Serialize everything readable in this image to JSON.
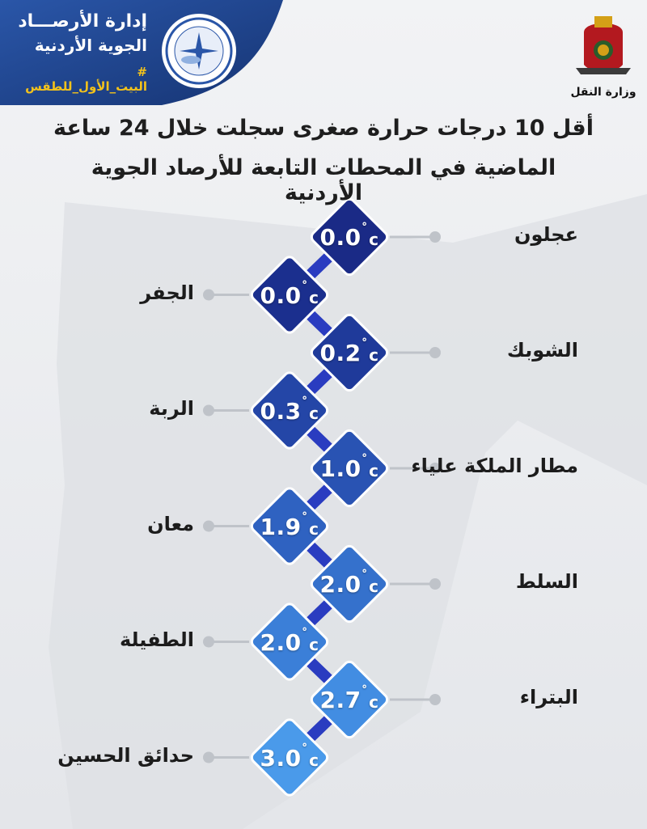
{
  "header": {
    "org_line1": "إدارة الأرصـــاد",
    "org_line2": "الجوية الأردنية",
    "hashtag": "# البيت_الأول_للطقس",
    "logo_icon": "meteorological-department-seal",
    "ministry_emblem": "jordan-coat-of-arms",
    "ministry_name": "وزارة النقل"
  },
  "title": {
    "line1": "أقل 10 درجات حرارة صغرى سجلت خلال 24 ساعة",
    "line2": "الماضية في المحطات التابعة للأرصاد الجوية الأردنية"
  },
  "unit": "c",
  "degree_symbol": "˚",
  "stations": [
    {
      "name": "عجلون",
      "value": "0.0",
      "color": "#1a2a86"
    },
    {
      "name": "الجفر",
      "value": "0.0",
      "color": "#1b2f8e"
    },
    {
      "name": "الشوبك",
      "value": "0.2",
      "color": "#1f3a9a"
    },
    {
      "name": "الربة",
      "value": "0.3",
      "color": "#2446a7"
    },
    {
      "name": "مطار الملكة علياء",
      "value": "1.0",
      "color": "#2953b3"
    },
    {
      "name": "معان",
      "value": "1.9",
      "color": "#2f62c1"
    },
    {
      "name": "السلط",
      "value": "2.0",
      "color": "#3571cc"
    },
    {
      "name": "الطفيلة",
      "value": "2.0",
      "color": "#3b7fd8"
    },
    {
      "name": "البتراء",
      "value": "2.7",
      "color": "#428de2"
    },
    {
      "name": "حدائق الحسين",
      "value": "3.0",
      "color": "#4a9aea"
    }
  ],
  "colors": {
    "header_bg": "#1d3d86",
    "hashtag": "#f3c21b",
    "connector": "#2a3cc0",
    "leader_line": "#bfc3c9"
  }
}
